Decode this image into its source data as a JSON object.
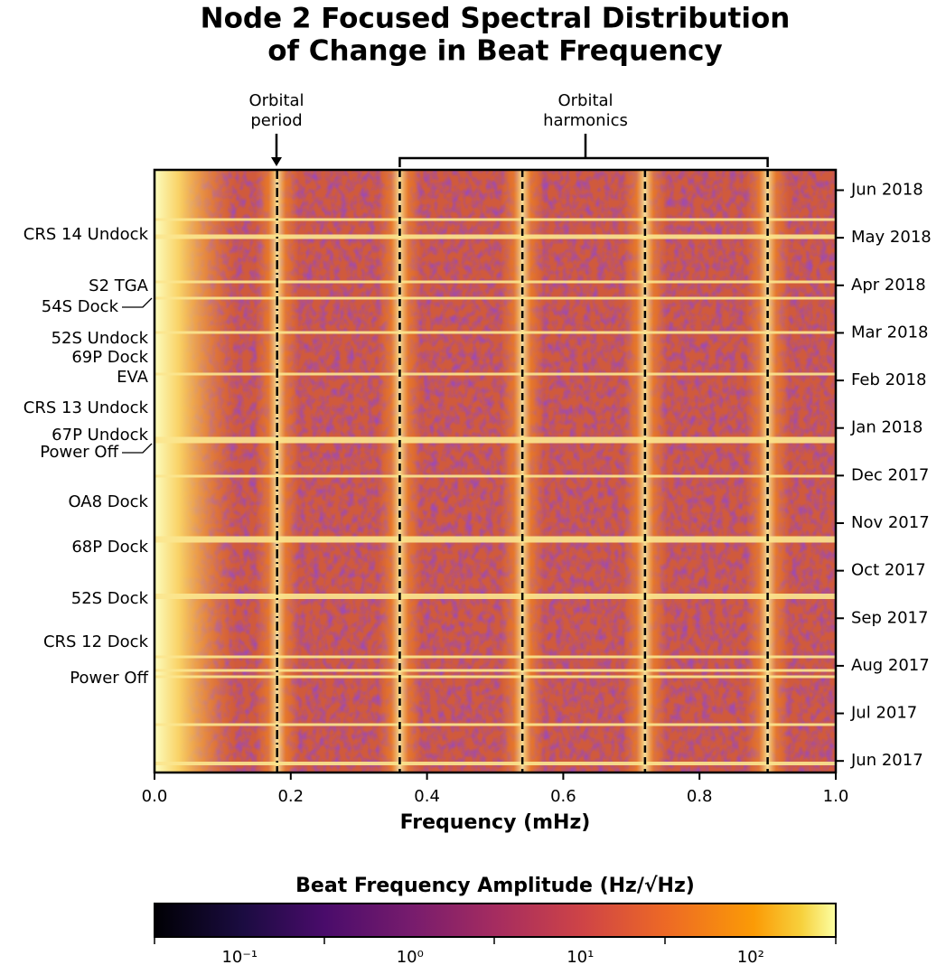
{
  "chart_data": {
    "type": "heatmap",
    "title": [
      "Node 2 Focused Spectral Distribution",
      "of Change in Beat Frequency"
    ],
    "x_label": "Frequency (mHz)",
    "xlim": [
      0,
      1
    ],
    "xticks": [
      {
        "value": 0,
        "label": "0.0"
      },
      0.2,
      0.4,
      0.6,
      0.8,
      {
        "value": 1,
        "label": "1.0"
      }
    ],
    "ylim": [
      "2017-05-24",
      "2018-06-14"
    ],
    "yticks": [
      {
        "value": "2018-06",
        "label": "Jun 2018"
      },
      {
        "value": "2018-05",
        "label": "May 2018"
      },
      {
        "value": "2018-04",
        "label": "Apr 2018"
      },
      {
        "value": "2018-03",
        "label": "Mar 2018"
      },
      {
        "value": "2018-02",
        "label": "Feb 2018"
      },
      {
        "value": "2018-01",
        "label": "Jan 2018"
      },
      {
        "value": "2017-12",
        "label": "Dec 2017"
      },
      {
        "value": "2017-11",
        "label": "Nov 2017"
      },
      {
        "value": "2017-10",
        "label": "Oct 2017"
      },
      {
        "value": "2017-09",
        "label": "Sep 2017"
      },
      {
        "value": "2017-08",
        "label": "Aug 2017"
      },
      {
        "value": "2017-07",
        "label": "Jul 2017"
      },
      {
        "value": "2017-06",
        "label": "Jun 2017"
      }
    ],
    "top_annotations": [
      "Orbital period",
      "Orbital harmonics"
    ],
    "events": [
      "CRS 14 Undock",
      "S2 TGA",
      "54S Dock",
      "52S Undock",
      "69P Dock",
      "EVA",
      "CRS 13 Undock",
      "67P Undock",
      "Power Off",
      "OA8 Dock",
      "68P Dock",
      "52S Dock",
      "CRS 12 Dock",
      "Power Off"
    ],
    "colorbar": {
      "label": "Beat Frequency Amplitude (Hz/√Hz)",
      "scale": "log",
      "cmap": "inferno",
      "clim": [
        0.0316,
        316
      ],
      "ticks": [
        {
          "value": 0.1,
          "label": "10⁻¹"
        },
        {
          "value": 1,
          "label": "10⁰"
        },
        {
          "value": 10,
          "label": "10¹"
        },
        {
          "value": 100,
          "label": "10²"
        }
      ]
    }
  }
}
